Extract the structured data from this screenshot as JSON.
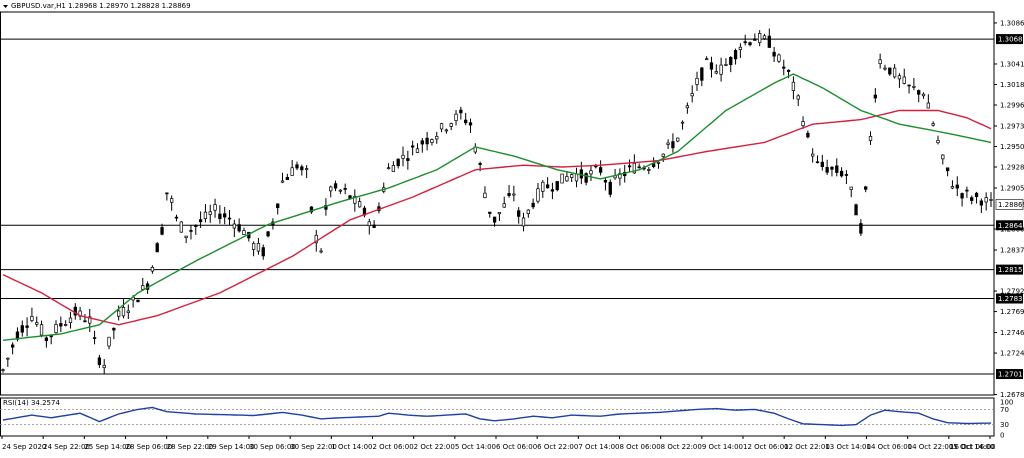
{
  "header": {
    "symbol_text": "GBPUSD.var,H1  1.28968 1.28970 1.28828 1.28869",
    "menu_icon": "triangle-down-icon"
  },
  "chart_data": {
    "type": "candlestick",
    "symbol": "GBPUSD.var",
    "timeframe": "H1",
    "ohlc_current": {
      "open": 1.28968,
      "high": 1.2897,
      "low": 1.28828,
      "close": 1.28869
    },
    "ylim": [
      1.2678,
      1.3098
    ],
    "y_ticks": [
      "1.30860",
      "1.30410",
      "1.30185",
      "1.29960",
      "1.29730",
      "1.29505",
      "1.29280",
      "1.29050",
      "1.28600",
      "1.28370",
      "1.27920",
      "1.27695",
      "1.27465",
      "1.27240",
      "1.26785"
    ],
    "price_levels": [
      {
        "label": "1.30683",
        "value": 1.30683
      },
      {
        "label": "1.28641",
        "value": 1.28641
      },
      {
        "label": "1.28155",
        "value": 1.28155
      },
      {
        "label": "1.27838",
        "value": 1.27838
      },
      {
        "label": "1.27010",
        "value": 1.2701
      }
    ],
    "current_price": {
      "label": "1.28869",
      "value": 1.28869
    },
    "x_tick_labels": [
      "24 Sep 2020",
      "24 Sep 22:00",
      "25 Sep 14:00",
      "28 Sep 06:00",
      "28 Sep 22:00",
      "29 Sep 14:00",
      "30 Sep 06:00",
      "30 Sep 22:00",
      "1 Oct 14:00",
      "2 Oct 06:00",
      "2 Oct 22:00",
      "5 Oct 14:00",
      "6 Oct 06:00",
      "6 Oct 22:00",
      "7 Oct 14:00",
      "8 Oct 06:00",
      "8 Oct 22:00",
      "9 Oct 14:00",
      "12 Oct 06:00",
      "12 Oct 22:00",
      "13 Oct 14:00",
      "14 Oct 06:00",
      "14 Oct 22:00",
      "15 Oct 14:00",
      "16 Oct 06:00"
    ],
    "price_path": [
      [
        0,
        1.2705
      ],
      [
        3,
        1.2745
      ],
      [
        6,
        1.2765
      ],
      [
        9,
        1.274
      ],
      [
        12,
        1.2755
      ],
      [
        15,
        1.2768
      ],
      [
        18,
        1.276
      ],
      [
        19,
        1.2735
      ],
      [
        20,
        1.2718
      ],
      [
        21,
        1.2712
      ],
      [
        22,
        1.2735
      ],
      [
        24,
        1.2765
      ],
      [
        27,
        1.278
      ],
      [
        30,
        1.28
      ],
      [
        33,
        1.286
      ],
      [
        34,
        1.29
      ],
      [
        35,
        1.289
      ],
      [
        36,
        1.287
      ],
      [
        38,
        1.2855
      ],
      [
        41,
        1.2868
      ],
      [
        44,
        1.288
      ],
      [
        47,
        1.2872
      ],
      [
        50,
        1.2858
      ],
      [
        52,
        1.2842
      ],
      [
        54,
        1.2835
      ],
      [
        56,
        1.2868
      ],
      [
        58,
        1.2912
      ],
      [
        61,
        1.293
      ],
      [
        63,
        1.292
      ],
      [
        64,
        1.288
      ],
      [
        65,
        1.285
      ],
      [
        66,
        1.2838
      ],
      [
        67,
        1.288
      ],
      [
        68,
        1.2905
      ],
      [
        71,
        1.29
      ],
      [
        74,
        1.2885
      ],
      [
        76,
        1.287
      ],
      [
        77,
        1.286
      ],
      [
        78,
        1.2885
      ],
      [
        80,
        1.2925
      ],
      [
        82,
        1.2935
      ],
      [
        84,
        1.2942
      ],
      [
        87,
        1.2955
      ],
      [
        90,
        1.2965
      ],
      [
        93,
        1.2978
      ],
      [
        95,
        1.2985
      ],
      [
        97,
        1.2975
      ],
      [
        98,
        1.295
      ],
      [
        99,
        1.2928
      ],
      [
        100,
        1.29
      ],
      [
        101,
        1.288
      ],
      [
        102,
        1.287
      ],
      [
        104,
        1.2885
      ],
      [
        106,
        1.29
      ],
      [
        107,
        1.2875
      ],
      [
        108,
        1.2868
      ],
      [
        110,
        1.289
      ],
      [
        112,
        1.2905
      ],
      [
        115,
        1.291
      ],
      [
        118,
        1.292
      ],
      [
        121,
        1.2918
      ],
      [
        124,
        1.2925
      ],
      [
        126,
        1.2905
      ],
      [
        128,
        1.2918
      ],
      [
        131,
        1.2928
      ],
      [
        134,
        1.293
      ],
      [
        137,
        1.2942
      ],
      [
        140,
        1.296
      ],
      [
        142,
        1.299
      ],
      [
        144,
        1.302
      ],
      [
        146,
        1.304
      ],
      [
        149,
        1.3035
      ],
      [
        151,
        1.3045
      ],
      [
        153,
        1.3062
      ],
      [
        156,
        1.307
      ],
      [
        159,
        1.3065
      ],
      [
        161,
        1.3045
      ],
      [
        163,
        1.303
      ],
      [
        165,
        1.3
      ],
      [
        167,
        1.296
      ],
      [
        169,
        1.293
      ],
      [
        172,
        1.2925
      ],
      [
        175,
        1.292
      ],
      [
        177,
        1.288
      ],
      [
        178,
        1.2862
      ],
      [
        179,
        1.29
      ],
      [
        180,
        1.296
      ],
      [
        181,
        1.301
      ],
      [
        182,
        1.3045
      ],
      [
        185,
        1.303
      ],
      [
        188,
        1.3015
      ],
      [
        191,
        1.301
      ],
      [
        193,
        1.2975
      ],
      [
        195,
        1.2935
      ],
      [
        197,
        1.291
      ],
      [
        199,
        1.29
      ],
      [
        201,
        1.2895
      ],
      [
        203,
        1.2893
      ],
      [
        205,
        1.2887
      ]
    ],
    "ma_green_path": [
      [
        0,
        1.2738
      ],
      [
        12,
        1.2745
      ],
      [
        20,
        1.2755
      ],
      [
        28,
        1.279
      ],
      [
        40,
        1.2825
      ],
      [
        55,
        1.2865
      ],
      [
        70,
        1.289
      ],
      [
        80,
        1.2905
      ],
      [
        90,
        1.2925
      ],
      [
        98,
        1.295
      ],
      [
        106,
        1.294
      ],
      [
        115,
        1.2925
      ],
      [
        124,
        1.2915
      ],
      [
        132,
        1.2925
      ],
      [
        140,
        1.2945
      ],
      [
        150,
        1.299
      ],
      [
        160,
        1.302
      ],
      [
        164,
        1.303
      ],
      [
        170,
        1.3015
      ],
      [
        178,
        1.299
      ],
      [
        186,
        1.2975
      ],
      [
        196,
        1.2965
      ],
      [
        205,
        1.2955
      ]
    ],
    "ma_red_path": [
      [
        0,
        1.281
      ],
      [
        8,
        1.279
      ],
      [
        16,
        1.2765
      ],
      [
        24,
        1.2755
      ],
      [
        32,
        1.2765
      ],
      [
        45,
        1.279
      ],
      [
        60,
        1.283
      ],
      [
        72,
        1.287
      ],
      [
        85,
        1.2895
      ],
      [
        98,
        1.2925
      ],
      [
        108,
        1.293
      ],
      [
        116,
        1.2928
      ],
      [
        124,
        1.293
      ],
      [
        136,
        1.2935
      ],
      [
        146,
        1.2945
      ],
      [
        158,
        1.2955
      ],
      [
        168,
        1.2975
      ],
      [
        178,
        1.298
      ],
      [
        186,
        1.299
      ],
      [
        194,
        1.299
      ],
      [
        200,
        1.2982
      ],
      [
        205,
        1.297
      ]
    ],
    "rsi": {
      "label": "RSI(14) 34.2574",
      "period": 14,
      "last_value": 34.2574,
      "ylim": [
        0,
        100
      ],
      "tick_labels": [
        "100",
        "70",
        "30",
        "0"
      ],
      "levels": [
        70,
        30
      ],
      "path": [
        [
          0,
          42
        ],
        [
          6,
          55
        ],
        [
          10,
          48
        ],
        [
          16,
          60
        ],
        [
          20,
          38
        ],
        [
          24,
          58
        ],
        [
          28,
          70
        ],
        [
          31,
          75
        ],
        [
          34,
          64
        ],
        [
          40,
          58
        ],
        [
          46,
          56
        ],
        [
          52,
          54
        ],
        [
          58,
          62
        ],
        [
          62,
          55
        ],
        [
          66,
          45
        ],
        [
          70,
          48
        ],
        [
          74,
          50
        ],
        [
          78,
          52
        ],
        [
          80,
          60
        ],
        [
          84,
          55
        ],
        [
          88,
          52
        ],
        [
          92,
          55
        ],
        [
          96,
          58
        ],
        [
          99,
          45
        ],
        [
          102,
          40
        ],
        [
          106,
          45
        ],
        [
          110,
          52
        ],
        [
          114,
          48
        ],
        [
          118,
          55
        ],
        [
          124,
          52
        ],
        [
          128,
          58
        ],
        [
          132,
          60
        ],
        [
          136,
          62
        ],
        [
          140,
          66
        ],
        [
          144,
          70
        ],
        [
          148,
          72
        ],
        [
          152,
          68
        ],
        [
          156,
          70
        ],
        [
          160,
          60
        ],
        [
          163,
          45
        ],
        [
          166,
          32
        ],
        [
          170,
          30
        ],
        [
          174,
          28
        ],
        [
          177,
          30
        ],
        [
          180,
          55
        ],
        [
          183,
          68
        ],
        [
          186,
          64
        ],
        [
          190,
          60
        ],
        [
          193,
          45
        ],
        [
          196,
          35
        ],
        [
          200,
          33
        ],
        [
          205,
          34
        ]
      ]
    },
    "colors": {
      "candle_line": "#000000",
      "ma_green": "#1a8f2a",
      "ma_red": "#d61f3d",
      "rsi_line": "#1f3fa6",
      "level_line": "#000000",
      "grid_dotted": "#888888"
    }
  }
}
